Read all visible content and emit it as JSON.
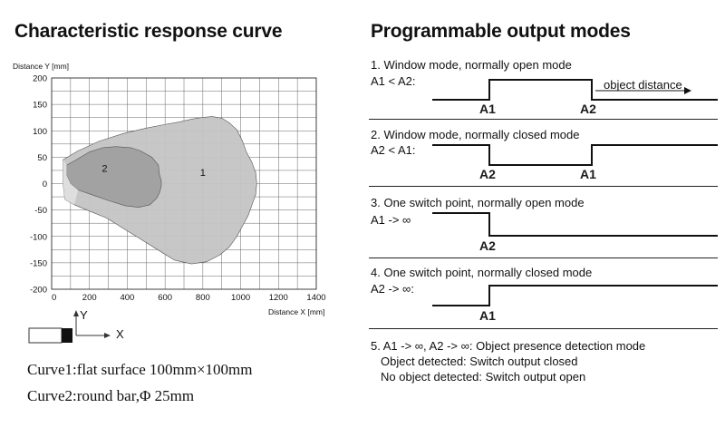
{
  "left": {
    "title": "Characteristic response curve",
    "curve_notes": [
      "Curve1:flat surface 100mm×100mm",
      "Curve2:round bar,Φ 25mm"
    ],
    "axis_icon": {
      "y_label": "Y",
      "x_label": "X"
    }
  },
  "right": {
    "title": "Programmable output modes",
    "modes": [
      {
        "title": "1. Window mode, normally open mode",
        "condition": "A1 < A2:",
        "labels": [
          "A1",
          "A2"
        ],
        "annotation": "object distance"
      },
      {
        "title": "2. Window mode, normally closed mode",
        "condition": "A2 < A1:",
        "labels": [
          "A2",
          "A1"
        ]
      },
      {
        "title": "3. One switch point, normally open mode",
        "condition": "A1 -> ∞",
        "labels": [
          "A2"
        ]
      },
      {
        "title": "4. One switch point, normally closed mode",
        "condition": "A2 -> ∞:",
        "labels": [
          "A1"
        ]
      }
    ],
    "mode5": {
      "title": "5. A1 -> ∞, A2 -> ∞: Object presence detection mode",
      "lines": [
        "Object detected: Switch output closed",
        "No object detected: Switch output open"
      ]
    }
  },
  "chart_data": {
    "type": "area",
    "title": "",
    "xlabel": "Distance X [mm]",
    "ylabel": "Distance Y [mm]",
    "xlim": [
      0,
      1400
    ],
    "ylim": [
      -200,
      200
    ],
    "xticks": [
      0,
      200,
      400,
      600,
      800,
      1000,
      1200,
      1400
    ],
    "yticks": [
      200,
      150,
      100,
      50,
      0,
      -50,
      -100,
      -150,
      -200
    ],
    "grid": true,
    "series": [
      {
        "name": "1",
        "color": "#c4c4c4",
        "points": [
          [
            60,
            45
          ],
          [
            140,
            62
          ],
          [
            250,
            80
          ],
          [
            380,
            95
          ],
          [
            500,
            105
          ],
          [
            600,
            112
          ],
          [
            680,
            117
          ],
          [
            740,
            122
          ],
          [
            790,
            125
          ],
          [
            850,
            127
          ],
          [
            900,
            124
          ],
          [
            940,
            115
          ],
          [
            980,
            102
          ],
          [
            1010,
            80
          ],
          [
            1030,
            60
          ],
          [
            1060,
            40
          ],
          [
            1080,
            20
          ],
          [
            1085,
            0
          ],
          [
            1080,
            -20
          ],
          [
            1060,
            -40
          ],
          [
            1040,
            -60
          ],
          [
            1010,
            -80
          ],
          [
            980,
            -100
          ],
          [
            940,
            -120
          ],
          [
            890,
            -135
          ],
          [
            820,
            -148
          ],
          [
            740,
            -152
          ],
          [
            650,
            -145
          ],
          [
            560,
            -125
          ],
          [
            470,
            -105
          ],
          [
            380,
            -85
          ],
          [
            290,
            -65
          ],
          [
            200,
            -52
          ],
          [
            120,
            -40
          ],
          [
            70,
            -30
          ],
          [
            60,
            0
          ]
        ]
      },
      {
        "name": "2",
        "color": "#a0a0a0",
        "points": [
          [
            80,
            35
          ],
          [
            130,
            45
          ],
          [
            200,
            60
          ],
          [
            270,
            68
          ],
          [
            340,
            70
          ],
          [
            420,
            68
          ],
          [
            470,
            62
          ],
          [
            530,
            50
          ],
          [
            565,
            35
          ],
          [
            570,
            18
          ],
          [
            580,
            5
          ],
          [
            580,
            -5
          ],
          [
            570,
            -18
          ],
          [
            555,
            -28
          ],
          [
            520,
            -40
          ],
          [
            460,
            -45
          ],
          [
            390,
            -42
          ],
          [
            300,
            -32
          ],
          [
            220,
            -22
          ],
          [
            140,
            -12
          ],
          [
            100,
            0
          ],
          [
            80,
            15
          ]
        ]
      }
    ]
  }
}
